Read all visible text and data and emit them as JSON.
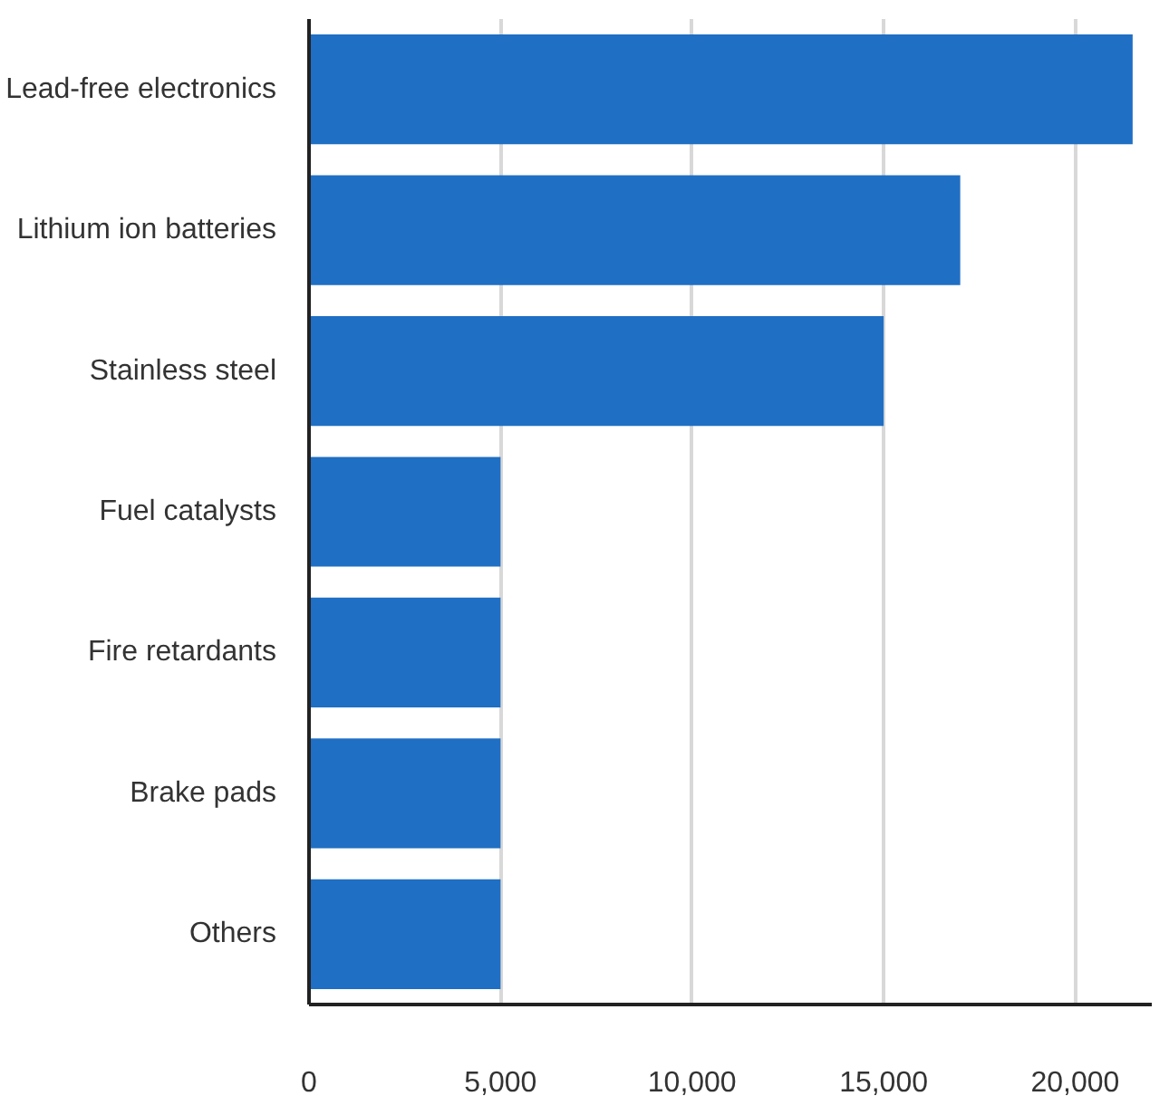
{
  "chart_data": {
    "type": "bar",
    "orientation": "horizontal",
    "categories": [
      "Lead-free electronics",
      "Lithium ion batteries",
      "Stainless steel",
      "Fuel catalysts",
      "Fire retardants",
      "Brake pads",
      "Others"
    ],
    "values": [
      21500,
      17000,
      15000,
      5000,
      5000,
      5000,
      5000
    ],
    "color": "#1f6fc4",
    "xlim": [
      0,
      22000
    ],
    "xticks": [
      {
        "value": 0,
        "label": "0"
      },
      {
        "value": 5000,
        "label": "5,000"
      },
      {
        "value": 10000,
        "label": "10,000"
      },
      {
        "value": 15000,
        "label": "15,000"
      },
      {
        "value": 20000,
        "label": "20,000"
      }
    ],
    "grid": "x"
  }
}
